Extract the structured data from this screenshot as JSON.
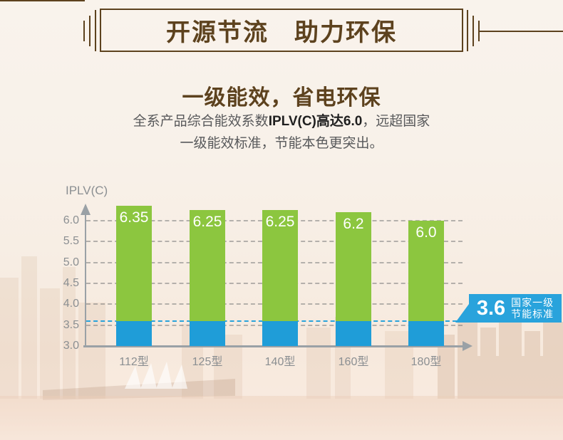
{
  "header": {
    "title": "开源节流　助力环保",
    "accent_color": "#5d421e"
  },
  "intro": {
    "subtitle": "一级能效，省电环保",
    "body_line1_part1": "全系产品综合能效系数",
    "body_line1_bold": "IPLV(C)高达6.0",
    "body_line1_part2": "，远超国家",
    "body_line2": "一级能效标准，节能本色更突出。"
  },
  "colors": {
    "brand_brown": "#5d421e",
    "text_gray": "#58595b",
    "text_dark": "#1f1f1f",
    "axis_gray": "#9aa1a6",
    "bar_green": "#8cc63f",
    "bar_blue": "#1f9dd8",
    "badge_blue": "#29a3dc"
  },
  "chart_data": {
    "type": "bar",
    "title": "IPLV(C)",
    "categories": [
      "112型",
      "125型",
      "140型",
      "160型",
      "180型"
    ],
    "values": [
      6.35,
      6.25,
      6.25,
      6.2,
      6.0
    ],
    "value_labels": [
      "6.35",
      "6.25",
      "6.25",
      "6.2",
      "6.0"
    ],
    "y_ticks": [
      3.0,
      3.5,
      4.0,
      4.5,
      5.0,
      5.5,
      6.0
    ],
    "y_tick_labels": [
      "3.0",
      "3.5",
      "4.0",
      "4.5",
      "5.0",
      "5.5",
      "6.0"
    ],
    "ylim": [
      3.0,
      6.5
    ],
    "grid": "dashed",
    "legend": "none",
    "bar_color_above": "#8cc63f",
    "bar_color_below": "#1f9dd8",
    "threshold": {
      "value": 3.6,
      "label_value": "3.6",
      "text_line1": "国家一级",
      "text_line2": "节能标准",
      "badge_color": "#29a3dc"
    }
  }
}
